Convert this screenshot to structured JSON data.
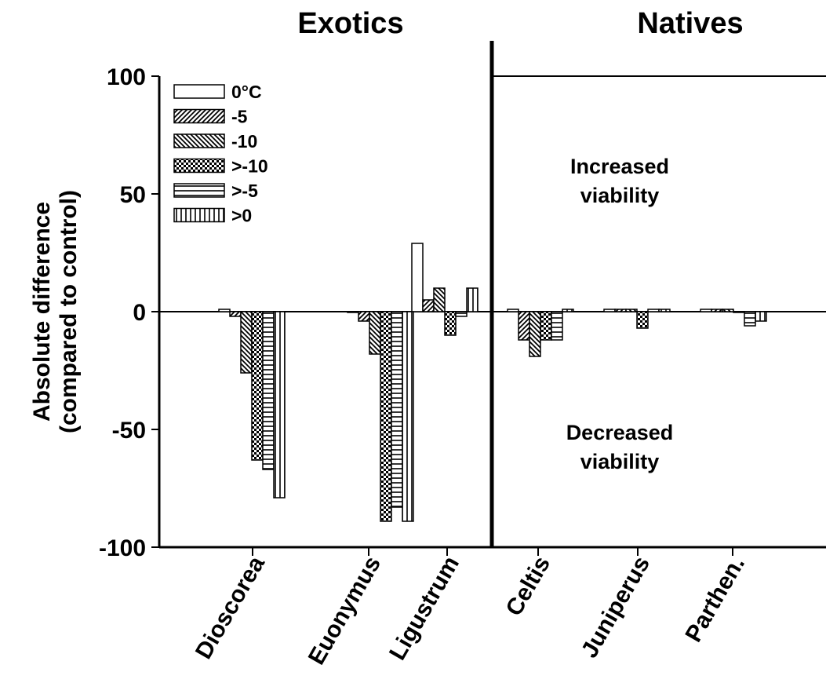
{
  "chart_data": {
    "type": "bar",
    "group_titles": [
      "Exotics",
      "Natives"
    ],
    "ylabel_line1": "Absolute difference",
    "ylabel_line2": "(compared to control)",
    "ylim": [
      -100,
      100
    ],
    "yticks": [
      100,
      50,
      0,
      -50,
      -100
    ],
    "yticks_labels": [
      "100",
      "50",
      "0",
      "-50",
      "-100"
    ],
    "categories": [
      "Dioscorea",
      "Euonymus",
      "Ligustrum",
      "Celtis",
      "Juniperus",
      "Parthen."
    ],
    "legend_position": "top-left",
    "series": [
      {
        "name": "0°C",
        "pattern": "white",
        "values": [
          1,
          0,
          29,
          1,
          1,
          1
        ]
      },
      {
        "name": "-5",
        "pattern": "diag-right",
        "values": [
          -2,
          -4,
          5,
          -12,
          1,
          1
        ]
      },
      {
        "name": "-10",
        "pattern": "diag-left",
        "values": [
          -26,
          -18,
          10,
          -19,
          1,
          1
        ]
      },
      {
        "name": ">-10",
        "pattern": "checker",
        "values": [
          -63,
          -89,
          -10,
          -12,
          -7,
          0
        ]
      },
      {
        "name": ">-5",
        "pattern": "horizontal",
        "values": [
          -67,
          -83,
          -2,
          -12,
          1,
          -6
        ]
      },
      {
        "name": ">0",
        "pattern": "vertical",
        "values": [
          -79,
          -89,
          10,
          1,
          1,
          -4
        ]
      }
    ],
    "annotations": [
      {
        "line1": "Increased",
        "line2": "viability"
      },
      {
        "line1": "Decreased",
        "line2": "viability"
      }
    ]
  }
}
